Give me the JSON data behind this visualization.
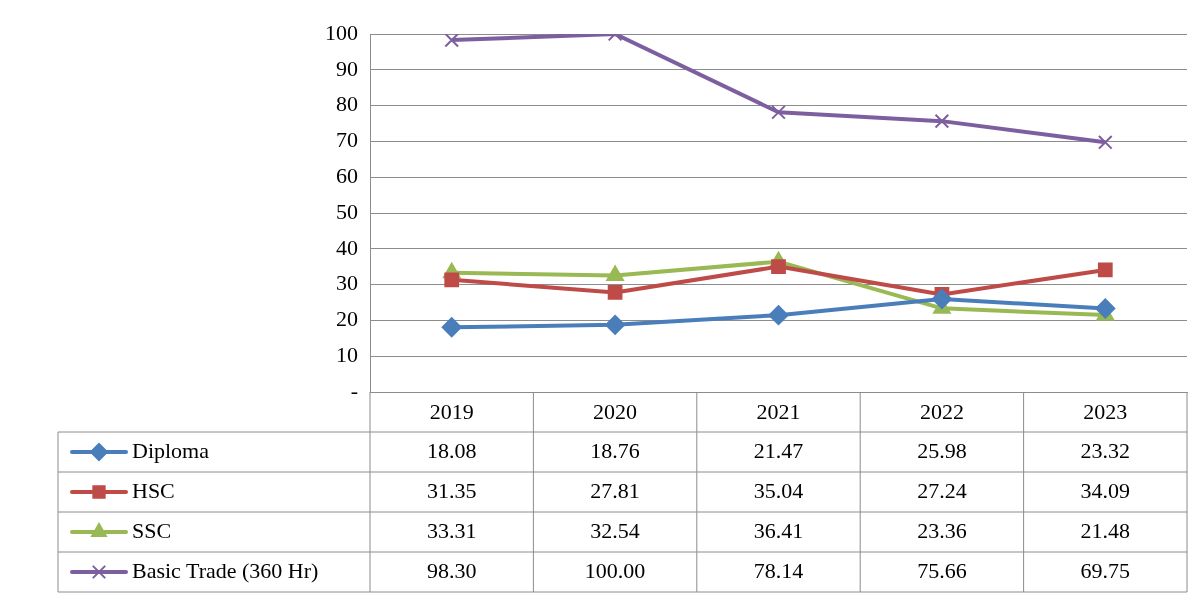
{
  "chart_data": {
    "type": "line",
    "categories": [
      "2019",
      "2020",
      "2021",
      "2022",
      "2023"
    ],
    "series": [
      {
        "name": "Diploma",
        "color": "#4a7ebb",
        "marker": "diamond",
        "values": [
          18.08,
          18.76,
          21.47,
          25.98,
          23.32
        ],
        "value_labels": [
          "18.08",
          "18.76",
          "21.47",
          "25.98",
          "23.32"
        ]
      },
      {
        "name": "HSC",
        "color": "#be4b48",
        "marker": "square",
        "values": [
          31.35,
          27.81,
          35.04,
          27.24,
          34.09
        ],
        "value_labels": [
          "31.35",
          "27.81",
          "35.04",
          "27.24",
          "34.09"
        ]
      },
      {
        "name": "SSC",
        "color": "#98b954",
        "marker": "triangle",
        "values": [
          33.31,
          32.54,
          36.41,
          23.36,
          21.48
        ],
        "value_labels": [
          "33.31",
          "32.54",
          "36.41",
          "23.36",
          "21.48"
        ]
      },
      {
        "name": "Basic Trade (360 Hr)",
        "color": "#7d5fa0",
        "marker": "cross",
        "values": [
          98.3,
          100.0,
          78.14,
          75.66,
          69.75
        ],
        "value_labels": [
          "98.30",
          "100.00",
          "78.14",
          "75.66",
          "69.75"
        ]
      }
    ],
    "ylim": [
      0,
      100
    ],
    "yticks": [
      {
        "value": 0,
        "label": "-"
      },
      10,
      20,
      30,
      40,
      50,
      60,
      70,
      80,
      90,
      100
    ],
    "grid": "y",
    "legend": "bottom",
    "line_style": "solid"
  }
}
